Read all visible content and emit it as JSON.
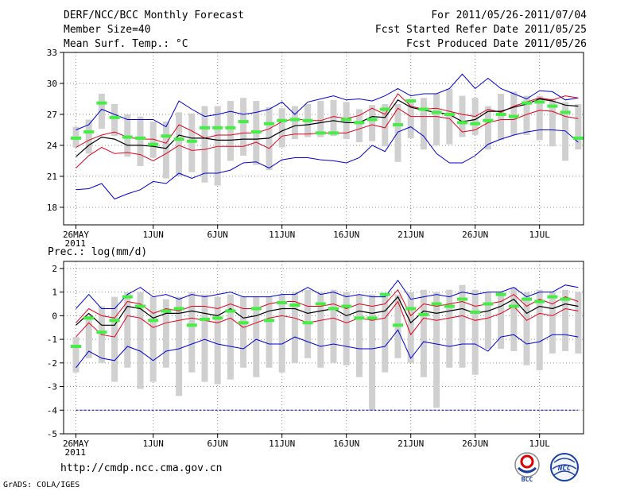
{
  "header": {
    "title": "DERF/NCC/BCC Monthly Forecast",
    "members": "Member Size=40",
    "variable": "Mean Surf. Temp.: °C",
    "period": "For 2011/05/26-2011/07/04",
    "started": "Fcst Started Refer Date 2011/05/25",
    "produced": "Fcst Produced Date 2011/05/26"
  },
  "footer": {
    "url": "http://cmdp.ncc.cma.gov.cn",
    "credit": "GrADS: COLA/IGES"
  },
  "logos": {
    "bcc": "BCC",
    "ncc": "NCC"
  },
  "colors": {
    "bar": "#d0d0d0",
    "ens_mean": "#000000",
    "spread": "#e0001e",
    "extreme": "#0000d0",
    "observed": "#44ee44",
    "grid": "#888888",
    "ref_line": "#0000c0"
  },
  "chart_data": [
    {
      "type": "line",
      "title": "Mean Surf. Temp.: °C",
      "x_tick_labels": [
        "26MAY",
        "1JUN",
        "6JUN",
        "11JUN",
        "16JUN",
        "21JUN",
        "26JUN",
        "1JUL"
      ],
      "x_tick_days": [
        0,
        6,
        11,
        16,
        21,
        26,
        31,
        36
      ],
      "x_sub_label": "2011",
      "y_ticks": [
        18,
        21,
        24,
        27,
        30,
        33
      ],
      "ylim": [
        16.3,
        33
      ],
      "days": 40,
      "series": [
        {
          "name": "bar_top",
          "values": [
            25.8,
            26.5,
            29.0,
            28.0,
            27.0,
            26.8,
            26.3,
            26.3,
            27.2,
            27.1,
            27.8,
            27.8,
            28.3,
            28.6,
            28.3,
            27.7,
            27.6,
            27.8,
            28.0,
            28.3,
            28.4,
            28.2,
            27.5,
            27.9,
            28.0,
            28.0,
            28.5,
            28.6,
            29.0,
            29.5,
            28.8,
            28.6,
            27.8,
            29.0,
            29.2,
            28.8,
            28.8,
            28.5,
            28.2,
            28.0
          ]
        },
        {
          "name": "bar_bottom",
          "values": [
            23.8,
            23.2,
            25.6,
            24.9,
            22.9,
            22.0,
            22.8,
            20.8,
            21.0,
            21.4,
            20.4,
            20.1,
            22.5,
            23.0,
            22.1,
            21.6,
            23.8,
            24.6,
            24.8,
            24.8,
            24.9,
            24.6,
            24.3,
            24.4,
            23.9,
            22.4,
            24.7,
            23.6,
            24.0,
            24.1,
            24.8,
            25.0,
            23.6,
            24.5,
            25.0,
            25.0,
            24.5,
            23.9,
            22.5,
            23.6
          ]
        },
        {
          "name": "max",
          "values": [
            25.5,
            26.0,
            27.5,
            27.0,
            26.5,
            26.5,
            26.5,
            25.8,
            28.3,
            27.5,
            26.8,
            27.0,
            27.3,
            27.0,
            27.2,
            27.5,
            28.2,
            27.0,
            28.2,
            28.5,
            28.8,
            28.4,
            28.5,
            28.3,
            28.8,
            29.5,
            28.8,
            29.0,
            29.0,
            29.5,
            30.9,
            29.5,
            30.5,
            29.5,
            29.0,
            28.5,
            29.3,
            29.2,
            28.4,
            28.6
          ]
        },
        {
          "name": "mean_plus",
          "values": [
            23.8,
            24.5,
            25.0,
            25.3,
            24.8,
            24.6,
            24.6,
            24.2,
            26.0,
            25.4,
            24.7,
            25.0,
            25.0,
            25.2,
            25.2,
            25.6,
            26.3,
            26.6,
            26.4,
            26.4,
            26.8,
            26.6,
            26.9,
            27.6,
            27.0,
            29.0,
            27.8,
            27.5,
            27.6,
            27.3,
            27.0,
            26.8,
            27.5,
            27.2,
            27.8,
            28.2,
            28.6,
            28.4,
            28.8,
            28.6
          ]
        },
        {
          "name": "ens_mean",
          "values": [
            22.9,
            24.0,
            24.8,
            24.6,
            24.0,
            24.0,
            23.9,
            23.7,
            25.0,
            24.7,
            24.7,
            24.5,
            24.5,
            24.6,
            24.6,
            24.7,
            25.4,
            25.9,
            26.0,
            26.2,
            26.4,
            26.2,
            26.2,
            26.8,
            26.7,
            28.4,
            27.7,
            27.4,
            27.2,
            27.0,
            26.3,
            26.5,
            27.3,
            27.3,
            27.7,
            28.0,
            28.5,
            28.3,
            27.9,
            27.8
          ]
        },
        {
          "name": "mean_minus",
          "values": [
            21.8,
            23.0,
            23.8,
            23.2,
            23.3,
            23.1,
            22.5,
            23.2,
            24.0,
            23.5,
            23.6,
            23.9,
            23.9,
            23.9,
            24.3,
            23.7,
            24.9,
            25.1,
            25.1,
            25.2,
            25.2,
            25.2,
            25.6,
            26.0,
            25.7,
            27.6,
            26.8,
            26.8,
            26.8,
            26.6,
            25.3,
            25.5,
            26.2,
            26.5,
            26.5,
            27.0,
            27.4,
            27.3,
            26.8,
            26.6
          ]
        },
        {
          "name": "min",
          "values": [
            19.7,
            19.8,
            20.3,
            18.8,
            19.3,
            19.7,
            20.5,
            20.3,
            21.3,
            20.8,
            21.3,
            21.3,
            21.6,
            22.3,
            22.4,
            21.8,
            22.6,
            22.8,
            22.8,
            22.6,
            22.5,
            22.3,
            22.8,
            24.0,
            23.4,
            25.3,
            25.8,
            24.9,
            23.2,
            22.3,
            22.3,
            23.0,
            24.1,
            24.6,
            25.0,
            25.3,
            25.5,
            25.5,
            25.4,
            24.3
          ]
        },
        {
          "name": "observed",
          "values": [
            24.7,
            25.3,
            28.1,
            26.7,
            24.8,
            24.7,
            24.1,
            24.9,
            24.6,
            24.4,
            25.7,
            25.7,
            25.7,
            26.3,
            25.3,
            26.1,
            26.4,
            26.5,
            26.4,
            25.2,
            25.2,
            26.5,
            26.2,
            26.5,
            27.5,
            26.0,
            28.3,
            27.5,
            27.2,
            27.0,
            26.2,
            26.1,
            26.4,
            27.0,
            26.8,
            28.1,
            28.2,
            27.8,
            27.2,
            24.7
          ]
        }
      ]
    },
    {
      "type": "line",
      "title": "Prec.: log(mm/d)",
      "x_tick_labels": [
        "26MAY",
        "1JUN",
        "6JUN",
        "11JUN",
        "16JUN",
        "21JUN",
        "26JUN",
        "1JUL"
      ],
      "x_tick_days": [
        0,
        6,
        11,
        16,
        21,
        26,
        31,
        36
      ],
      "x_sub_label": "2011",
      "y_ticks": [
        -5,
        -4,
        -3,
        -2,
        -1,
        0,
        1,
        2
      ],
      "ylim": [
        -5,
        2.3
      ],
      "reference_line": -4,
      "days": 40,
      "series": [
        {
          "name": "bar_top",
          "values": [
            -0.9,
            0.0,
            0.4,
            0.8,
            1.0,
            1.0,
            0.8,
            0.7,
            0.8,
            1.0,
            0.9,
            0.8,
            0.9,
            0.8,
            0.8,
            0.8,
            0.9,
            1.0,
            1.1,
            1.0,
            1.1,
            1.0,
            0.9,
            0.9,
            0.9,
            0.9,
            1.0,
            1.1,
            1.0,
            1.1,
            1.3,
            1.1,
            1.0,
            1.0,
            1.2,
            1.0,
            1.1,
            1.0,
            1.1,
            1.0
          ]
        },
        {
          "name": "bar_bottom",
          "values": [
            -2.4,
            -1.8,
            -2.0,
            -2.8,
            -2.2,
            -3.1,
            -2.8,
            -2.2,
            -3.4,
            -2.4,
            -2.8,
            -2.9,
            -2.7,
            -2.2,
            -2.6,
            -2.2,
            -2.4,
            -2.0,
            -1.8,
            -2.2,
            -2.0,
            -2.1,
            -2.6,
            -4.0,
            -2.4,
            -1.8,
            -2.0,
            -2.6,
            -3.9,
            -2.2,
            -2.2,
            -2.5,
            -1.4,
            -1.4,
            -1.5,
            -2.1,
            -2.3,
            -1.6,
            -1.5,
            -1.6
          ]
        },
        {
          "name": "max",
          "values": [
            0.3,
            0.9,
            0.3,
            0.3,
            0.9,
            1.2,
            0.8,
            0.9,
            0.7,
            0.9,
            0.8,
            0.9,
            1.0,
            0.8,
            0.8,
            0.8,
            0.9,
            0.9,
            1.2,
            0.9,
            1.0,
            0.8,
            0.9,
            0.8,
            0.8,
            1.5,
            0.7,
            0.8,
            0.9,
            0.8,
            1.0,
            0.9,
            1.0,
            1.0,
            1.2,
            0.8,
            1.0,
            1.0,
            1.3,
            1.2
          ]
        },
        {
          "name": "mean_plus",
          "values": [
            -0.3,
            0.3,
            0.0,
            -0.1,
            0.6,
            0.5,
            0.1,
            0.3,
            0.2,
            0.4,
            0.4,
            0.3,
            0.5,
            0.3,
            0.3,
            0.5,
            0.6,
            0.6,
            0.4,
            0.4,
            0.5,
            0.3,
            0.5,
            0.4,
            0.5,
            1.1,
            0.0,
            0.5,
            0.4,
            0.5,
            0.6,
            0.4,
            0.5,
            0.6,
            0.9,
            0.4,
            0.7,
            0.5,
            0.8,
            0.6
          ]
        },
        {
          "name": "ens_mean",
          "values": [
            -0.4,
            0.1,
            -0.4,
            -0.4,
            0.4,
            0.3,
            -0.1,
            0.1,
            0.1,
            0.2,
            0.1,
            0.0,
            0.3,
            -0.1,
            0.0,
            0.2,
            0.3,
            0.3,
            0.1,
            0.2,
            0.3,
            0.0,
            0.2,
            0.1,
            0.2,
            0.8,
            -0.3,
            0.2,
            0.1,
            0.2,
            0.3,
            0.1,
            0.2,
            0.4,
            0.7,
            0.1,
            0.4,
            0.3,
            0.5,
            0.4
          ]
        },
        {
          "name": "mean_minus",
          "values": [
            -0.9,
            -0.3,
            -0.8,
            -0.9,
            0.0,
            -0.1,
            -0.5,
            -0.3,
            -0.2,
            -0.1,
            -0.2,
            -0.3,
            -0.1,
            -0.5,
            -0.3,
            -0.1,
            0.0,
            -0.1,
            -0.3,
            -0.2,
            -0.1,
            -0.3,
            -0.1,
            -0.2,
            -0.1,
            0.6,
            -0.8,
            -0.1,
            -0.2,
            -0.1,
            0.0,
            -0.2,
            -0.1,
            0.1,
            0.4,
            -0.2,
            0.1,
            0.0,
            0.3,
            0.2
          ]
        },
        {
          "name": "min",
          "values": [
            -2.2,
            -1.5,
            -1.8,
            -1.9,
            -1.3,
            -1.5,
            -1.9,
            -1.5,
            -1.4,
            -1.2,
            -1.0,
            -1.2,
            -1.3,
            -1.4,
            -1.0,
            -1.2,
            -1.2,
            -0.9,
            -1.1,
            -1.3,
            -1.2,
            -1.3,
            -1.4,
            -1.4,
            -1.3,
            -0.6,
            -1.8,
            -1.1,
            -1.2,
            -1.3,
            -1.2,
            -1.2,
            -1.5,
            -0.9,
            -0.8,
            -1.2,
            -1.1,
            -0.8,
            -0.8,
            -0.9
          ]
        },
        {
          "name": "observed",
          "values": [
            -1.3,
            -0.1,
            -0.7,
            -0.2,
            0.8,
            0.4,
            -0.2,
            0.2,
            0.3,
            -0.4,
            -0.15,
            -0.1,
            0.2,
            -0.3,
            0.3,
            -0.2,
            0.55,
            0.45,
            -0.3,
            0.5,
            0.3,
            0.4,
            -0.1,
            -0.1,
            0.9,
            -0.4,
            0.3,
            0.05,
            0.5,
            0.4,
            0.7,
            0.15,
            0.5,
            0.9,
            0.4,
            0.7,
            0.6,
            0.8,
            0.7,
            null
          ]
        }
      ]
    }
  ]
}
